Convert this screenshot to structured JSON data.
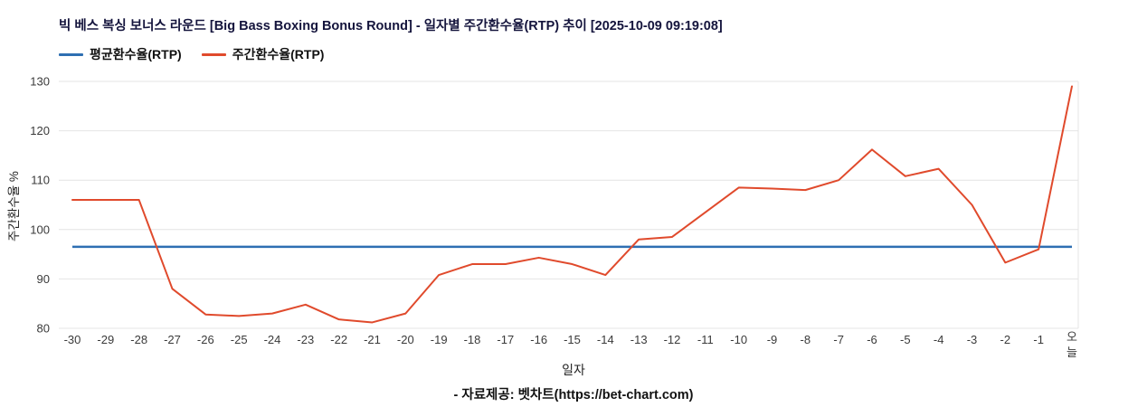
{
  "header": {
    "title": "빅 베스 복싱 보너스 라운드 [Big Bass Boxing Bonus Round] - 일자별 주간환수율(RTP) 추이 [2025-10-09 09:19:08]"
  },
  "legend": [
    {
      "label": "평균환수율(RTP)",
      "color": "#2e6fb2"
    },
    {
      "label": "주간환수율(RTP)",
      "color": "#e04a2c"
    }
  ],
  "chart_data": {
    "type": "line",
    "title": "빅 베스 복싱 보너스 라운드 [Big Bass Boxing Bonus Round] - 일자별 주간환수율(RTP) 추이 [2025-10-09 09:19:08]",
    "xlabel": "일자",
    "ylabel": "주간환수율 %",
    "ylim": [
      80,
      130
    ],
    "yticks": [
      80,
      90,
      100,
      110,
      120,
      130
    ],
    "grid": true,
    "legend_position": "top-left",
    "categories": [
      "-30",
      "-29",
      "-28",
      "-27",
      "-26",
      "-25",
      "-24",
      "-23",
      "-22",
      "-21",
      "-20",
      "-19",
      "-18",
      "-17",
      "-16",
      "-15",
      "-14",
      "-13",
      "-12",
      "-11",
      "-10",
      "-9",
      "-8",
      "-7",
      "-6",
      "-5",
      "-4",
      "-3",
      "-2",
      "-1",
      "오늘"
    ],
    "series": [
      {
        "name": "평균환수율(RTP)",
        "color": "#2e6fb2",
        "value": 96.5
      },
      {
        "name": "주간환수율(RTP)",
        "color": "#e04a2c",
        "values": [
          106,
          106,
          106,
          88,
          82.8,
          82.5,
          83,
          84.8,
          81.8,
          81.2,
          83,
          90.8,
          93,
          93,
          94.3,
          93,
          90.8,
          98,
          98.5,
          103.5,
          108.5,
          108.3,
          108,
          110,
          116.2,
          110.8,
          112.3,
          105,
          93.3,
          96,
          129
        ]
      }
    ]
  },
  "footer": {
    "credit": "- 자료제공: 벳차트(https://bet-chart.com)"
  }
}
